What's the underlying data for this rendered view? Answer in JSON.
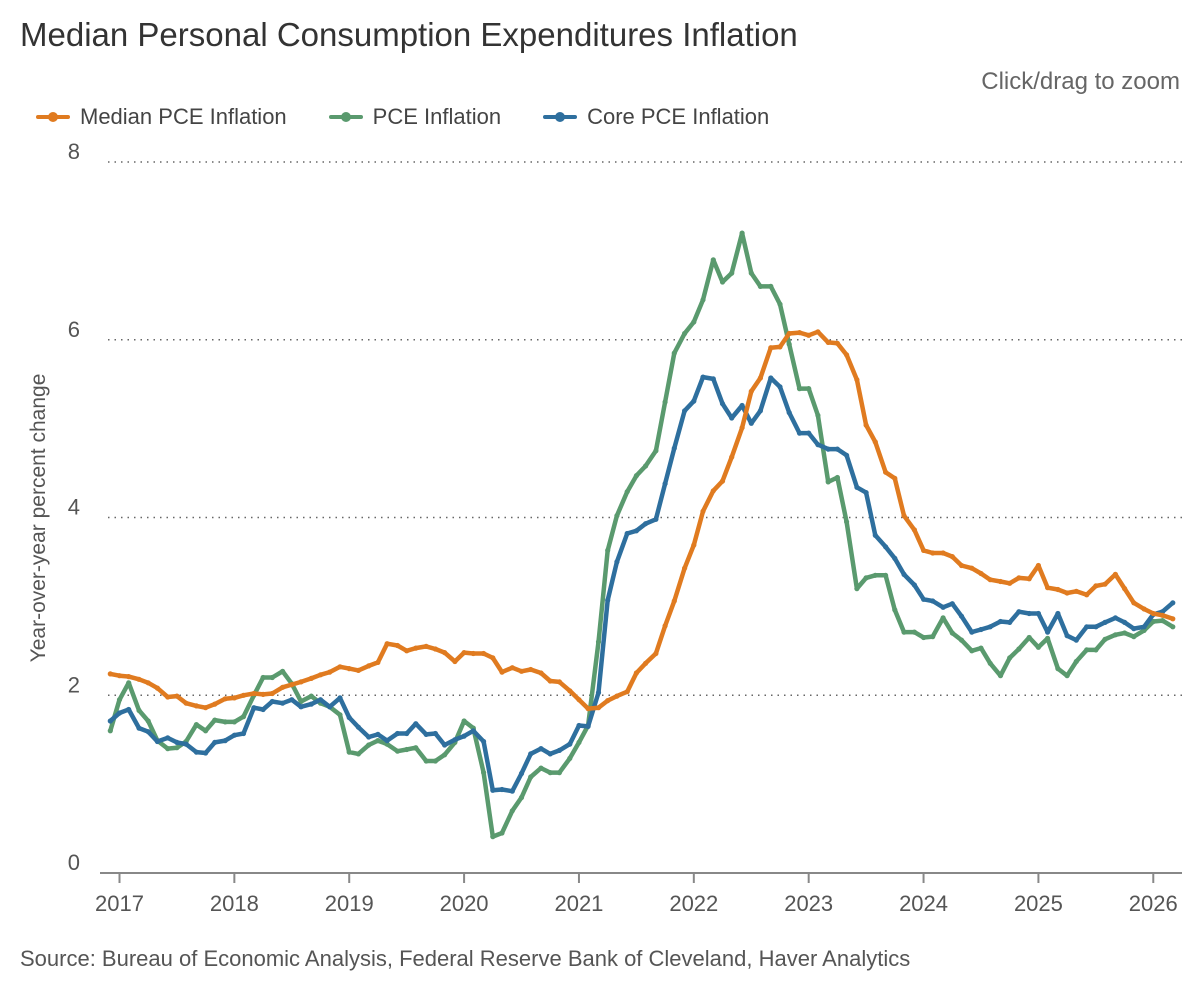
{
  "header": {
    "title": "Median Personal Consumption Expenditures Inflation",
    "zoom_hint": "Click/drag to zoom"
  },
  "footer": {
    "source": "Source: Bureau of Economic Analysis, Federal Reserve Bank of Cleveland, Haver Analytics"
  },
  "colors": {
    "median": "#e07b20",
    "pce": "#5a9a6e",
    "core": "#2e6f9e",
    "grid": "#666666",
    "axis": "#888888"
  },
  "chart_data": {
    "type": "line",
    "title": "Median Personal Consumption Expenditures Inflation",
    "xlabel": "",
    "ylabel": "Year-over-year percent change",
    "xlim": [
      2016.9,
      2026.25
    ],
    "ylim": [
      0,
      8
    ],
    "y_ticks": [
      0,
      2,
      4,
      6,
      8
    ],
    "x_ticks": [
      2017,
      2018,
      2019,
      2020,
      2021,
      2022,
      2023,
      2024,
      2025,
      2026
    ],
    "x_tick_labels": [
      "2017",
      "2018",
      "2019",
      "2020",
      "2021",
      "2022",
      "2023",
      "2024",
      "2025",
      "2026"
    ],
    "grid": "horizontal dotted",
    "legend": "top-left",
    "series": [
      {
        "name": "Median PCE Inflation",
        "key": "median",
        "x": [
          2016.92,
          2017.0,
          2017.08,
          2017.17,
          2017.25,
          2017.33,
          2017.42,
          2017.5,
          2017.58,
          2017.67,
          2017.75,
          2017.83,
          2017.92,
          2018.0,
          2018.08,
          2018.17,
          2018.25,
          2018.33,
          2018.42,
          2018.5,
          2018.58,
          2018.67,
          2018.75,
          2018.83,
          2018.92,
          2019.0,
          2019.08,
          2019.17,
          2019.25,
          2019.33,
          2019.42,
          2019.5,
          2019.58,
          2019.67,
          2019.75,
          2019.83,
          2019.92,
          2020.0,
          2020.08,
          2020.17,
          2020.25,
          2020.33,
          2020.42,
          2020.5,
          2020.58,
          2020.67,
          2020.75,
          2020.83,
          2020.92,
          2021.0,
          2021.08,
          2021.17,
          2021.25,
          2021.33,
          2021.42,
          2021.5,
          2021.58,
          2021.67,
          2021.75,
          2021.83,
          2021.92,
          2022.0,
          2022.08,
          2022.17,
          2022.25,
          2022.33,
          2022.42,
          2022.5,
          2022.58,
          2022.67,
          2022.75,
          2022.83,
          2022.92,
          2023.0,
          2023.08,
          2023.17,
          2023.25,
          2023.33,
          2023.42,
          2023.5,
          2023.58,
          2023.67,
          2023.75,
          2023.83,
          2023.92,
          2024.0,
          2024.08,
          2024.17,
          2024.25,
          2024.33,
          2024.42,
          2024.5,
          2024.58,
          2024.67,
          2024.75,
          2024.83,
          2024.92,
          2025.0,
          2025.08,
          2025.17,
          2025.25,
          2025.33,
          2025.42,
          2025.5,
          2025.58,
          2025.67,
          2025.75,
          2025.83,
          2025.92,
          2026.0,
          2026.08,
          2026.17
        ],
        "values": [
          2.24,
          2.22,
          2.21,
          2.18,
          2.14,
          2.08,
          1.98,
          1.99,
          1.91,
          1.88,
          1.86,
          1.9,
          1.96,
          1.97,
          2.0,
          2.02,
          2.01,
          2.02,
          2.09,
          2.12,
          2.15,
          2.19,
          2.23,
          2.26,
          2.32,
          2.3,
          2.28,
          2.33,
          2.37,
          2.58,
          2.56,
          2.5,
          2.53,
          2.55,
          2.52,
          2.48,
          2.38,
          2.48,
          2.47,
          2.47,
          2.42,
          2.26,
          2.31,
          2.27,
          2.29,
          2.25,
          2.16,
          2.15,
          2.05,
          1.95,
          1.85,
          1.86,
          1.94,
          1.99,
          2.04,
          2.25,
          2.36,
          2.47,
          2.78,
          3.06,
          3.43,
          3.69,
          4.07,
          4.3,
          4.41,
          4.68,
          5.01,
          5.42,
          5.57,
          5.91,
          5.92,
          6.07,
          6.08,
          6.05,
          6.09,
          5.97,
          5.96,
          5.83,
          5.55,
          5.04,
          4.85,
          4.51,
          4.44,
          4.02,
          3.86,
          3.63,
          3.6,
          3.6,
          3.56,
          3.46,
          3.43,
          3.37,
          3.3,
          3.28,
          3.26,
          3.32,
          3.31,
          3.46,
          3.21,
          3.19,
          3.15,
          3.17,
          3.13,
          3.23,
          3.25,
          3.36,
          3.2,
          3.04,
          2.97,
          2.92,
          2.9,
          2.86
        ]
      },
      {
        "name": "PCE Inflation",
        "key": "pce",
        "x": [
          2016.92,
          2017.0,
          2017.08,
          2017.17,
          2017.25,
          2017.33,
          2017.42,
          2017.5,
          2017.58,
          2017.67,
          2017.75,
          2017.83,
          2017.92,
          2018.0,
          2018.08,
          2018.17,
          2018.25,
          2018.33,
          2018.42,
          2018.5,
          2018.58,
          2018.67,
          2018.75,
          2018.83,
          2018.92,
          2019.0,
          2019.08,
          2019.17,
          2019.25,
          2019.33,
          2019.42,
          2019.5,
          2019.58,
          2019.67,
          2019.75,
          2019.83,
          2019.92,
          2020.0,
          2020.08,
          2020.17,
          2020.25,
          2020.33,
          2020.42,
          2020.5,
          2020.58,
          2020.67,
          2020.75,
          2020.83,
          2020.92,
          2021.0,
          2021.08,
          2021.17,
          2021.25,
          2021.33,
          2021.42,
          2021.5,
          2021.58,
          2021.67,
          2021.75,
          2021.83,
          2021.92,
          2022.0,
          2022.08,
          2022.17,
          2022.25,
          2022.33,
          2022.42,
          2022.5,
          2022.58,
          2022.67,
          2022.75,
          2022.83,
          2022.92,
          2023.0,
          2023.08,
          2023.17,
          2023.25,
          2023.33,
          2023.42,
          2023.5,
          2023.58,
          2023.67,
          2023.75,
          2023.83,
          2023.92,
          2024.0,
          2024.08,
          2024.17,
          2024.25,
          2024.33,
          2024.42,
          2024.5,
          2024.58,
          2024.67,
          2024.75,
          2024.83,
          2024.92,
          2025.0,
          2025.08,
          2025.17,
          2025.25,
          2025.33,
          2025.42,
          2025.5,
          2025.58,
          2025.67,
          2025.75,
          2025.83,
          2025.92,
          2026.0,
          2026.08,
          2026.17
        ],
        "values": [
          1.6,
          1.95,
          2.14,
          1.83,
          1.71,
          1.49,
          1.4,
          1.41,
          1.48,
          1.67,
          1.6,
          1.72,
          1.7,
          1.7,
          1.76,
          2.0,
          2.2,
          2.2,
          2.27,
          2.13,
          1.93,
          1.99,
          1.91,
          1.87,
          1.78,
          1.36,
          1.34,
          1.44,
          1.49,
          1.45,
          1.37,
          1.39,
          1.41,
          1.26,
          1.26,
          1.33,
          1.47,
          1.71,
          1.63,
          1.13,
          0.41,
          0.45,
          0.7,
          0.85,
          1.08,
          1.18,
          1.13,
          1.13,
          1.29,
          1.47,
          1.66,
          2.6,
          3.63,
          4.02,
          4.29,
          4.47,
          4.58,
          4.75,
          5.3,
          5.85,
          6.07,
          6.2,
          6.45,
          6.9,
          6.65,
          6.75,
          7.2,
          6.75,
          6.6,
          6.6,
          6.4,
          5.95,
          5.45,
          5.45,
          5.15,
          4.4,
          4.45,
          3.95,
          3.2,
          3.32,
          3.35,
          3.35,
          2.96,
          2.71,
          2.71,
          2.65,
          2.66,
          2.87,
          2.7,
          2.62,
          2.5,
          2.53,
          2.36,
          2.22,
          2.42,
          2.52,
          2.65,
          2.54,
          2.64,
          2.3,
          2.22,
          2.38,
          2.51,
          2.51,
          2.63,
          2.68,
          2.7,
          2.66,
          2.73,
          2.83,
          2.84,
          2.77
        ]
      },
      {
        "name": "Core PCE Inflation",
        "key": "core",
        "x": [
          2016.92,
          2017.0,
          2017.08,
          2017.17,
          2017.25,
          2017.33,
          2017.42,
          2017.5,
          2017.58,
          2017.67,
          2017.75,
          2017.83,
          2017.92,
          2018.0,
          2018.08,
          2018.17,
          2018.25,
          2018.33,
          2018.42,
          2018.5,
          2018.58,
          2018.67,
          2018.75,
          2018.83,
          2018.92,
          2019.0,
          2019.08,
          2019.17,
          2019.25,
          2019.33,
          2019.42,
          2019.5,
          2019.58,
          2019.67,
          2019.75,
          2019.83,
          2019.92,
          2020.0,
          2020.08,
          2020.17,
          2020.25,
          2020.33,
          2020.42,
          2020.5,
          2020.58,
          2020.67,
          2020.75,
          2020.83,
          2020.92,
          2021.0,
          2021.08,
          2021.17,
          2021.25,
          2021.33,
          2021.42,
          2021.5,
          2021.58,
          2021.67,
          2021.75,
          2021.83,
          2021.92,
          2022.0,
          2022.08,
          2022.17,
          2022.25,
          2022.33,
          2022.42,
          2022.5,
          2022.58,
          2022.67,
          2022.75,
          2022.83,
          2022.92,
          2023.0,
          2023.08,
          2023.17,
          2023.25,
          2023.33,
          2023.42,
          2023.5,
          2023.58,
          2023.67,
          2023.75,
          2023.83,
          2023.92,
          2024.0,
          2024.08,
          2024.17,
          2024.25,
          2024.33,
          2024.42,
          2024.5,
          2024.58,
          2024.67,
          2024.75,
          2024.83,
          2024.92,
          2025.0,
          2025.08,
          2025.17,
          2025.25,
          2025.33,
          2025.42,
          2025.5,
          2025.58,
          2025.67,
          2025.75,
          2025.83,
          2025.92,
          2026.0,
          2026.08,
          2026.17
        ],
        "values": [
          1.71,
          1.8,
          1.84,
          1.63,
          1.59,
          1.48,
          1.52,
          1.47,
          1.45,
          1.36,
          1.35,
          1.47,
          1.49,
          1.55,
          1.57,
          1.86,
          1.84,
          1.93,
          1.91,
          1.95,
          1.87,
          1.9,
          1.95,
          1.87,
          1.97,
          1.75,
          1.64,
          1.53,
          1.56,
          1.49,
          1.57,
          1.57,
          1.68,
          1.56,
          1.57,
          1.44,
          1.5,
          1.54,
          1.6,
          1.48,
          0.93,
          0.94,
          0.92,
          1.12,
          1.34,
          1.4,
          1.34,
          1.38,
          1.45,
          1.66,
          1.65,
          2.03,
          3.07,
          3.5,
          3.82,
          3.85,
          3.93,
          3.98,
          4.38,
          4.78,
          5.2,
          5.31,
          5.58,
          5.56,
          5.28,
          5.12,
          5.26,
          5.06,
          5.2,
          5.57,
          5.47,
          5.18,
          4.95,
          4.95,
          4.82,
          4.77,
          4.77,
          4.7,
          4.34,
          4.28,
          3.8,
          3.67,
          3.54,
          3.36,
          3.24,
          3.08,
          3.06,
          2.99,
          3.03,
          2.89,
          2.71,
          2.74,
          2.77,
          2.83,
          2.82,
          2.94,
          2.92,
          2.92,
          2.71,
          2.92,
          2.67,
          2.62,
          2.77,
          2.77,
          2.82,
          2.87,
          2.82,
          2.75,
          2.77,
          2.91,
          2.94,
          3.04
        ]
      }
    ]
  }
}
